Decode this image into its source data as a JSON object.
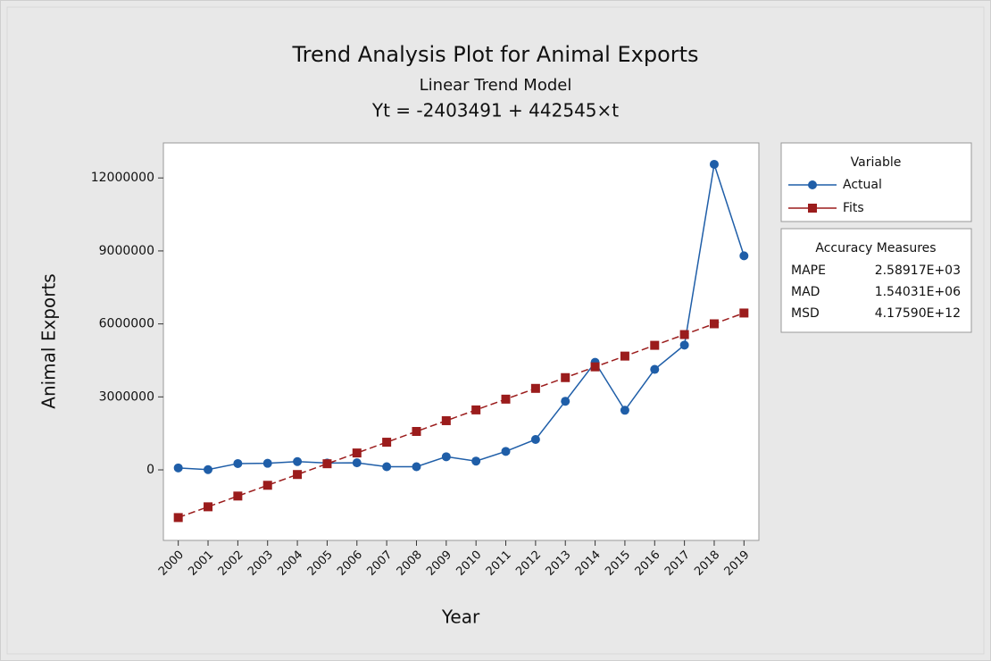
{
  "chart_data": {
    "type": "line",
    "title": "Trend Analysis Plot for Animal Exports",
    "subtitle": "Linear Trend Model",
    "equation": "Yt = -2403491 + 442545×t",
    "x_label": "Year",
    "y_label": "Animal Exports",
    "x": [
      2000,
      2001,
      2002,
      2003,
      2004,
      2005,
      2006,
      2007,
      2008,
      2009,
      2010,
      2011,
      2012,
      2013,
      2014,
      2015,
      2016,
      2017,
      2018,
      2019
    ],
    "series": [
      {
        "name": "Actual",
        "color": "#1f5ea8",
        "marker": "circle",
        "values": [
          80000,
          10000,
          260000,
          270000,
          340000,
          280000,
          290000,
          130000,
          130000,
          540000,
          360000,
          760000,
          1250000,
          2820000,
          4420000,
          2450000,
          4130000,
          5130000,
          12560000,
          8800000
        ]
      },
      {
        "name": "Fits",
        "color": "#9b1c1c",
        "marker": "square",
        "values": [
          -1960946,
          -1518401,
          -1075856,
          -633311,
          -190766,
          251779,
          694324,
          1136869,
          1579414,
          2021959,
          2464504,
          2907049,
          3349594,
          3792139,
          4234684,
          4677229,
          5119774,
          5562319,
          6004864,
          6447409
        ]
      }
    ],
    "xlim": [
      1999.5,
      2019.5
    ],
    "xticks": [
      2000,
      2001,
      2002,
      2003,
      2004,
      2005,
      2006,
      2007,
      2008,
      2009,
      2010,
      2011,
      2012,
      2013,
      2014,
      2015,
      2016,
      2017,
      2018,
      2019
    ],
    "ylim": [
      -2900000,
      13440000
    ],
    "yticks": [
      0,
      3000000,
      6000000,
      9000000,
      12000000
    ],
    "legend_title": "Variable",
    "accuracy": {
      "title": "Accuracy Measures",
      "rows": [
        [
          "MAPE",
          "2.58917E+03"
        ],
        [
          "MAD",
          "1.54031E+06"
        ],
        [
          "MSD",
          "4.17590E+12"
        ]
      ]
    }
  }
}
